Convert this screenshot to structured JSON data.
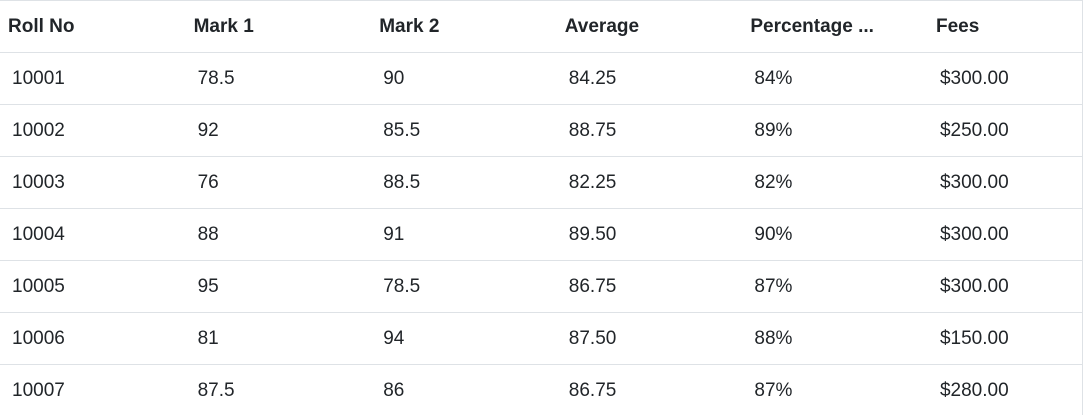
{
  "columns": [
    "Roll No",
    "Mark 1",
    "Mark 2",
    "Average",
    "Percentage ...",
    "Fees"
  ],
  "rows": [
    [
      "10001",
      "78.5",
      "90",
      "84.25",
      "84%",
      "$300.00"
    ],
    [
      "10002",
      "92",
      "85.5",
      "88.75",
      "89%",
      "$250.00"
    ],
    [
      "10003",
      "76",
      "88.5",
      "82.25",
      "82%",
      "$300.00"
    ],
    [
      "10004",
      "88",
      "91",
      "89.50",
      "90%",
      "$300.00"
    ],
    [
      "10005",
      "95",
      "78.5",
      "86.75",
      "87%",
      "$300.00"
    ],
    [
      "10006",
      "81",
      "94",
      "87.50",
      "88%",
      "$150.00"
    ],
    [
      "10007",
      "87.5",
      "86",
      "86.75",
      "87%",
      "$280.00"
    ]
  ]
}
